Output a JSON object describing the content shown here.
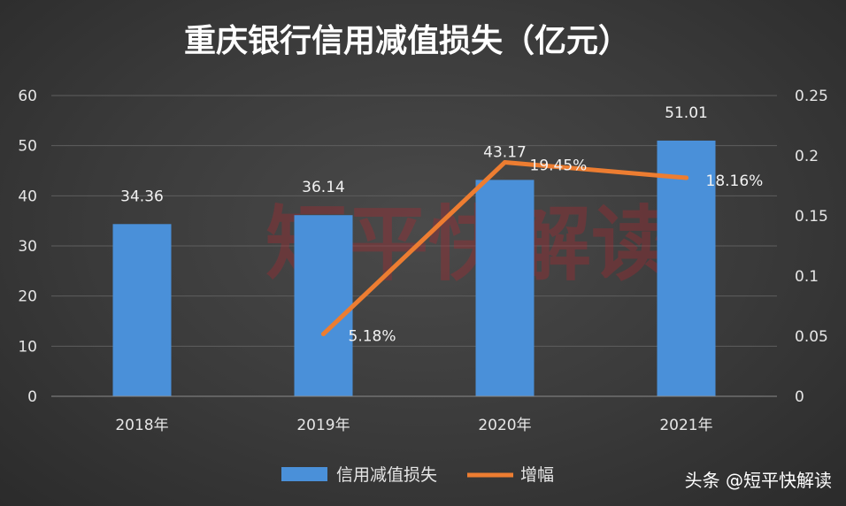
{
  "chart_data": {
    "type": "bar",
    "title": "重庆银行信用减值损失（亿元）",
    "categories": [
      "2018年",
      "2019年",
      "2020年",
      "2021年"
    ],
    "series": [
      {
        "name": "信用减值损失",
        "kind": "bar",
        "axis": "left",
        "values": [
          34.36,
          36.14,
          43.17,
          51.01
        ],
        "labels": [
          "34.36",
          "36.14",
          "43.17",
          "51.01"
        ],
        "color": "#4a90d9"
      },
      {
        "name": "增幅",
        "kind": "line",
        "axis": "right",
        "values": [
          null,
          0.0518,
          0.1945,
          0.1816
        ],
        "labels": [
          "",
          "5.18%",
          "19.45%",
          "18.16%"
        ],
        "color": "#ed7d31"
      }
    ],
    "y_left": {
      "range": [
        0,
        60
      ],
      "ticks": [
        "0",
        "10",
        "20",
        "30",
        "40",
        "50",
        "60"
      ]
    },
    "y_right": {
      "range": [
        0,
        0.25
      ],
      "ticks": [
        "0",
        "0.05",
        "0.1",
        "0.15",
        "0.2",
        "0.25"
      ]
    },
    "grid": true,
    "legend": "bottom"
  },
  "watermark": "短平快解读",
  "credit": "头条 @短平快解读"
}
